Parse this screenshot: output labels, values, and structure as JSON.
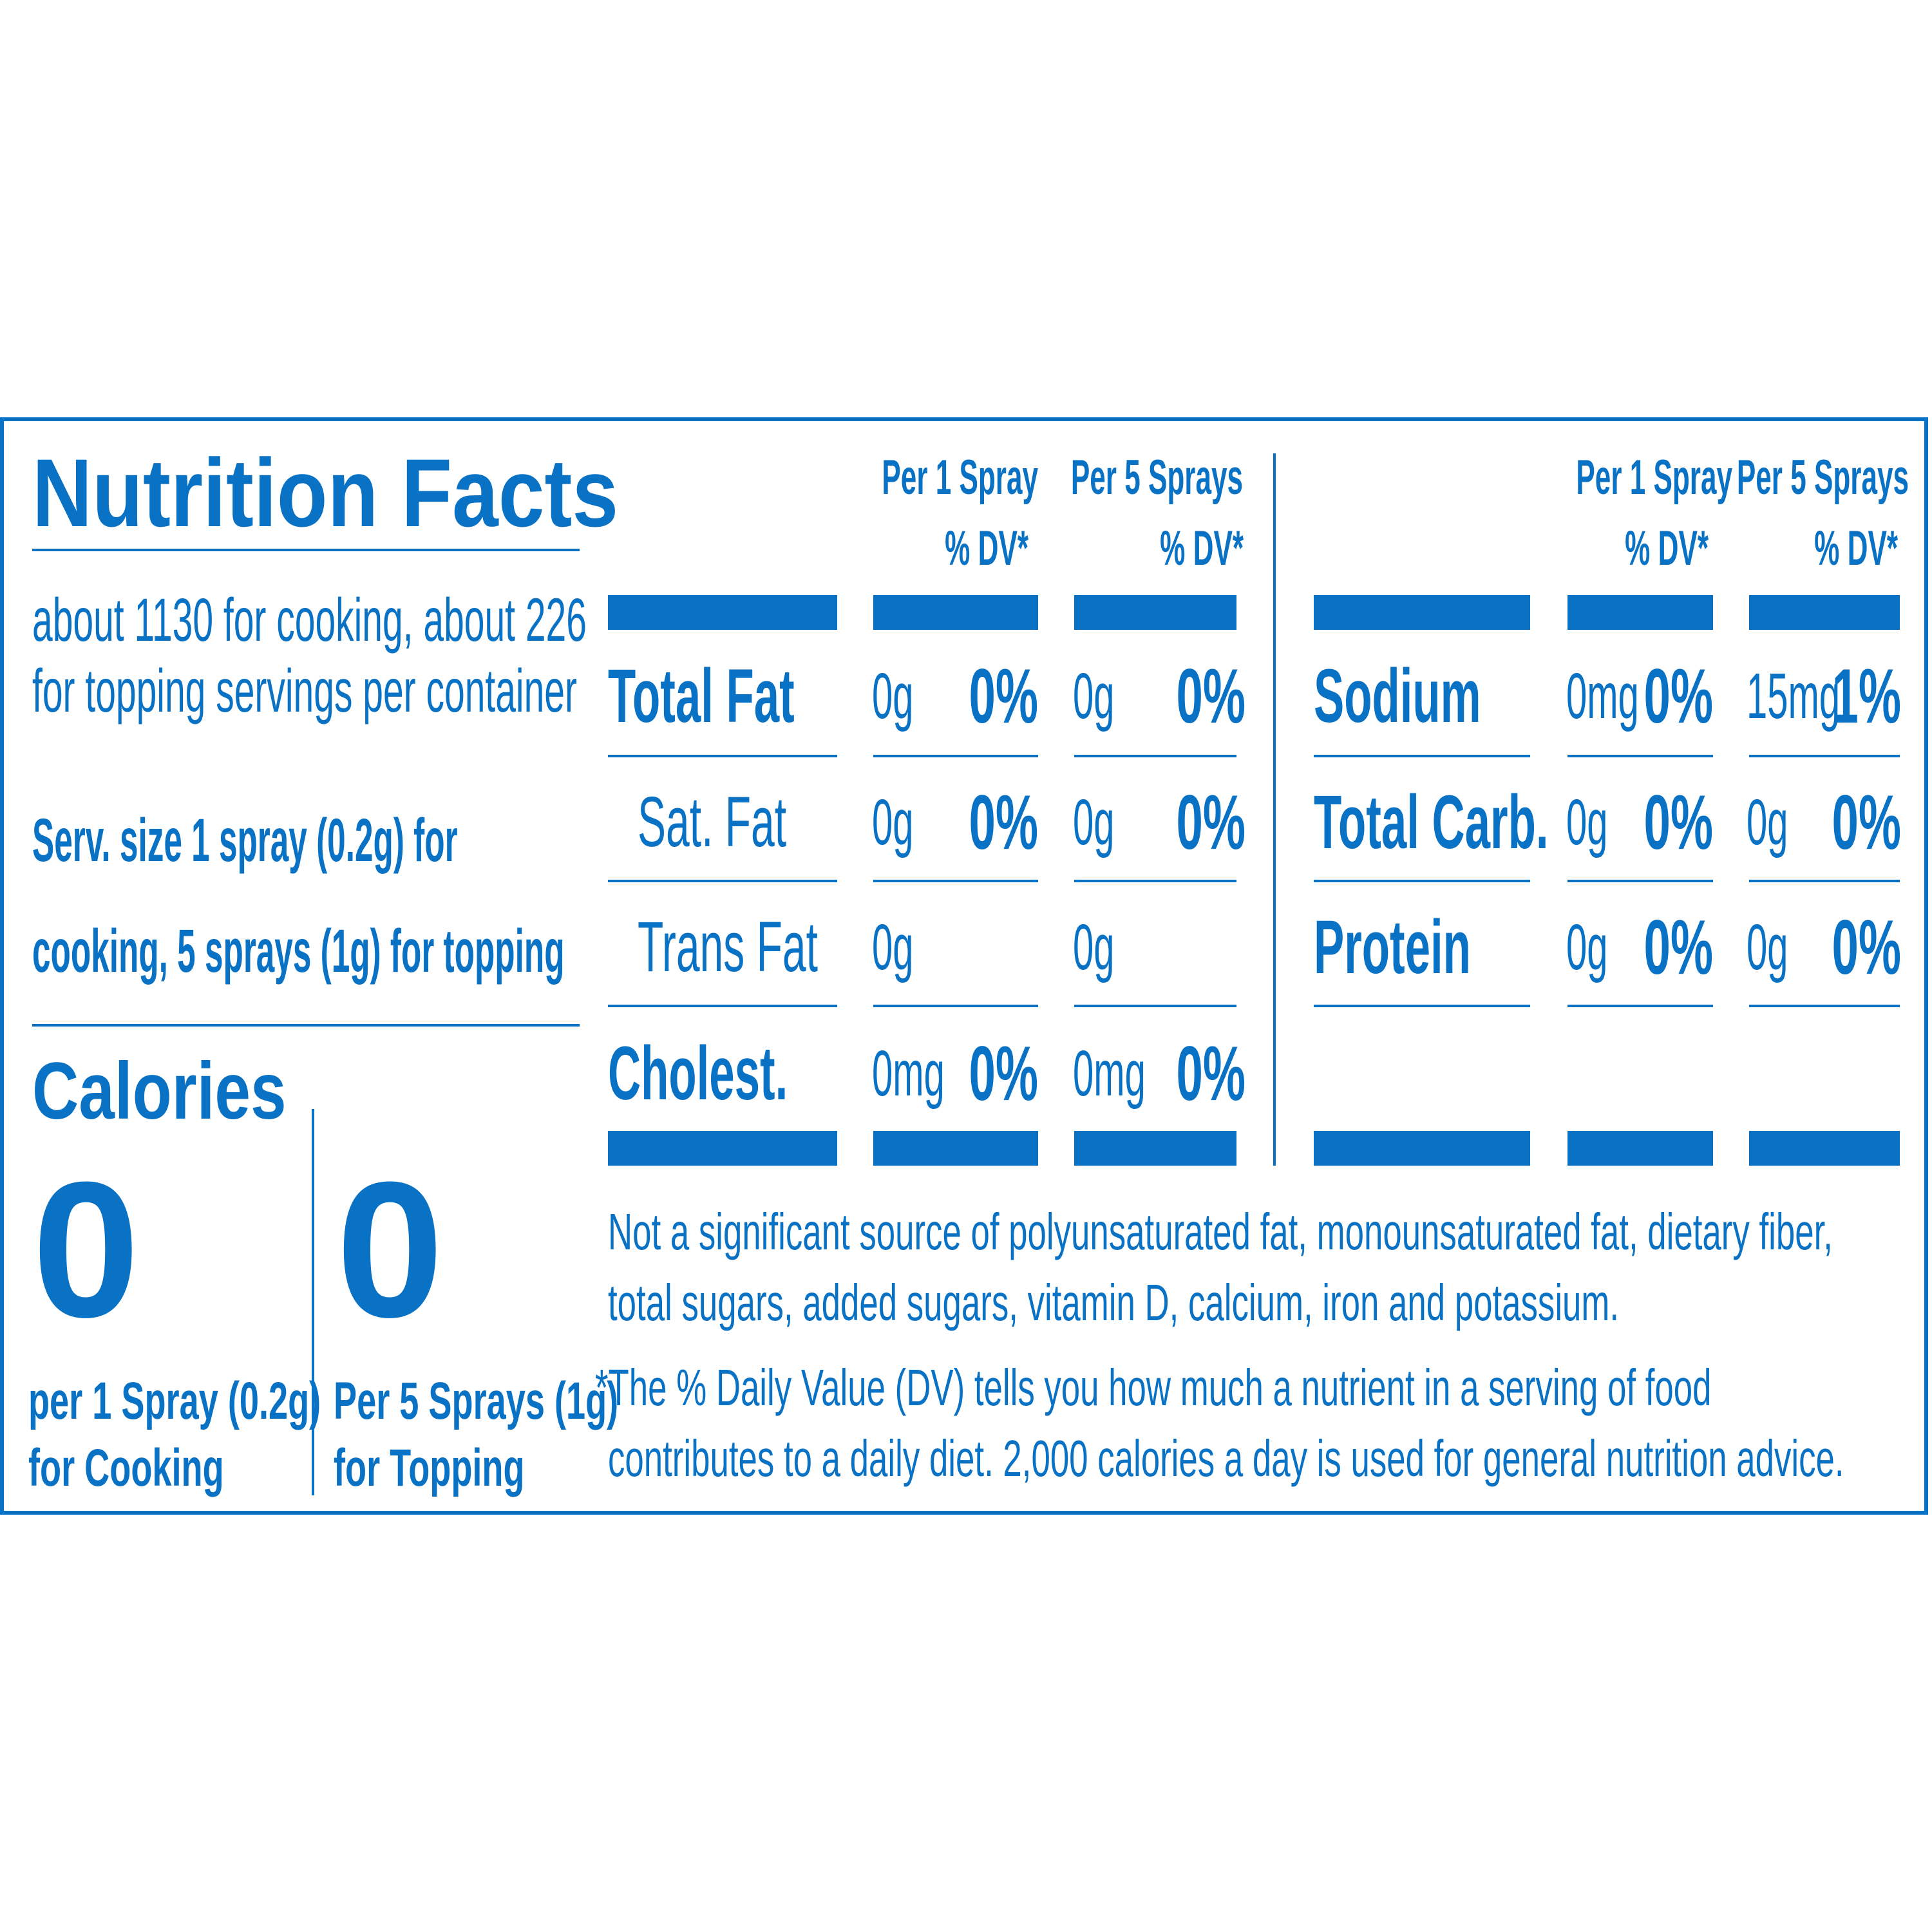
{
  "colors": {
    "accent": "#0a72c4",
    "background": "#ffffff"
  },
  "panel": {
    "title": "Nutrition Facts",
    "servings_per_container": [
      "about 1130 for cooking, about 226",
      "for topping servings per container"
    ],
    "serving_size": [
      "Serv. size 1 spray (0.2g) for",
      "cooking, 5 sprays (1g) for topping"
    ],
    "calories": {
      "label": "Calories",
      "cooking": {
        "value": "0",
        "caption": [
          "per 1 Spray (0.2g)",
          "for Cooking"
        ]
      },
      "topping": {
        "value": "0",
        "caption": [
          "Per 5 Sprays (1g)",
          "for Topping"
        ]
      }
    }
  },
  "columns": {
    "per1": {
      "line1": "Per 1 Spray",
      "line2": "% DV*"
    },
    "per5": {
      "line1": "Per 5 Sprays",
      "line2": "% DV*"
    }
  },
  "left_nutrients": [
    {
      "name": "Total Fat",
      "per1_amount": "0g",
      "per1_dv": "0%",
      "per5_amount": "0g",
      "per5_dv": "0%"
    },
    {
      "name": "Sat. Fat",
      "per1_amount": "0g",
      "per1_dv": "0%",
      "per5_amount": "0g",
      "per5_dv": "0%"
    },
    {
      "name": "Trans Fat",
      "per1_amount": "0g",
      "per1_dv": "",
      "per5_amount": "0g",
      "per5_dv": ""
    },
    {
      "name": "Cholest.",
      "per1_amount": "0mg",
      "per1_dv": "0%",
      "per5_amount": "0mg",
      "per5_dv": "0%"
    }
  ],
  "right_nutrients": [
    {
      "name": "Sodium",
      "per1_amount": "0mg",
      "per1_dv": "0%",
      "per5_amount": "15mg",
      "per5_dv": "1%"
    },
    {
      "name": "Total Carb.",
      "per1_amount": "0g",
      "per1_dv": "0%",
      "per5_amount": "0g",
      "per5_dv": "0%"
    },
    {
      "name": "Protein",
      "per1_amount": "0g",
      "per1_dv": "0%",
      "per5_amount": "0g",
      "per5_dv": "0%"
    }
  ],
  "footnotes": {
    "not_significant": [
      "Not a significant source of polyunsaturated fat, monounsaturated fat, dietary fiber,",
      "total sugars, added sugars, vitamin D, calcium, iron and potassium."
    ],
    "daily_value": [
      "*The % Daily Value (DV) tells you how much a nutrient in a serving of food",
      "contributes to a daily diet. 2,000 calories a day is used for general nutrition advice."
    ]
  }
}
